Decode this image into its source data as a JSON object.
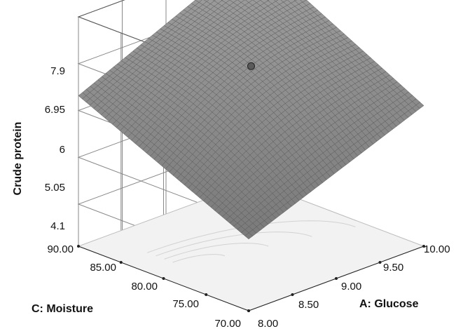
{
  "chart_data": {
    "type": "surface",
    "title": "",
    "zlabel": "Crude protein",
    "xlabel": "A: Glucose",
    "ylabel": "C: Moisture",
    "z_ticks": [
      "4.1",
      "5.05",
      "6",
      "6.95",
      "7.9"
    ],
    "x_ticks": [
      "8.00",
      "8.50",
      "9.00",
      "9.50",
      "10.00"
    ],
    "y_ticks": [
      "70.00",
      "75.00",
      "80.00",
      "85.00",
      "90.00"
    ],
    "xlim": [
      8.0,
      10.0
    ],
    "ylim": [
      70.0,
      90.0
    ],
    "zlim": [
      4.1,
      7.9
    ],
    "grid": true,
    "surface_corners": [
      {
        "glucose": 8.0,
        "moisture": 70.0,
        "crude_protein": 4.7
      },
      {
        "glucose": 10.0,
        "moisture": 70.0,
        "crude_protein": 6.1
      },
      {
        "glucose": 10.0,
        "moisture": 90.0,
        "crude_protein": 7.9
      },
      {
        "glucose": 8.0,
        "moisture": 90.0,
        "crude_protein": 6.3
      }
    ],
    "design_point": {
      "glucose": 9.0,
      "moisture": 80.0,
      "crude_protein": 6.9
    },
    "colors": {
      "surface": "#8a8a8a",
      "mesh": "#5a5a5a",
      "floor": "#f2f2f2",
      "grid": "#888888"
    }
  }
}
